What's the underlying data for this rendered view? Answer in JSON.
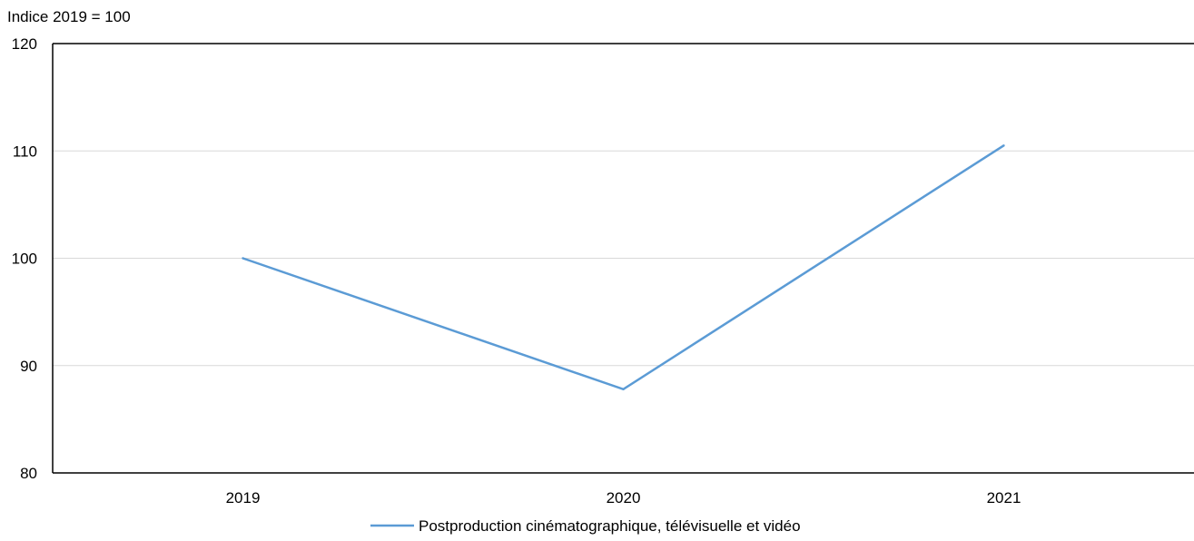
{
  "chart_data": {
    "type": "line",
    "title": "",
    "ylabel": "Indice 2019 = 100",
    "xlabel": "",
    "categories": [
      "2019",
      "2020",
      "2021"
    ],
    "ylim": [
      80,
      120
    ],
    "yticks": [
      80,
      90,
      100,
      110,
      120
    ],
    "grid": true,
    "legend_position": "bottom",
    "series": [
      {
        "name": "Postproduction cinématographique, télévisuelle et vidéo",
        "values": [
          100,
          87.8,
          110.5
        ],
        "color": "#5b9bd5"
      }
    ]
  },
  "colors": {
    "gridline": "#d9d9d9",
    "axis": "#000000"
  }
}
